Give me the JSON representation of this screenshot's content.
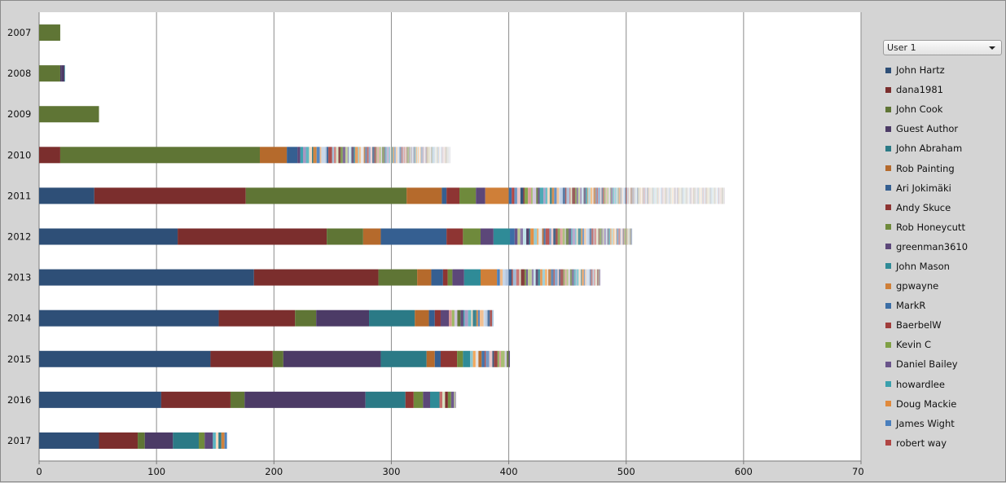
{
  "chart_data": {
    "type": "bar",
    "orientation": "horizontal",
    "stacked": true,
    "categories": [
      "2007",
      "2008",
      "2009",
      "2010",
      "2011",
      "2012",
      "2013",
      "2014",
      "2015",
      "2016",
      "2017"
    ],
    "xlim": [
      0,
      700
    ],
    "xticks": [
      0,
      100,
      200,
      300,
      400,
      500,
      600,
      700
    ],
    "grid": true,
    "legend_position": "right",
    "series": [
      {
        "name": "John Hartz",
        "color": "#2e4f77",
        "values": [
          0,
          0,
          0,
          0,
          47,
          118,
          183,
          153,
          146,
          104,
          51
        ]
      },
      {
        "name": "dana1981",
        "color": "#7b2e2d",
        "values": [
          0,
          0,
          0,
          18,
          129,
          127,
          106,
          65,
          53,
          59,
          33
        ]
      },
      {
        "name": "John Cook",
        "color": "#5f7535",
        "values": [
          18,
          18,
          51,
          170,
          137,
          31,
          33,
          18,
          9,
          12,
          6
        ]
      },
      {
        "name": "Guest Author",
        "color": "#4c3b66",
        "values": [
          0,
          1,
          0,
          0,
          0,
          0,
          0,
          45,
          83,
          103,
          24
        ]
      },
      {
        "name": "John Abraham",
        "color": "#2b7a86",
        "values": [
          0,
          0,
          0,
          0,
          0,
          0,
          0,
          39,
          39,
          34,
          22
        ]
      },
      {
        "name": "Rob Painting",
        "color": "#b56a2c",
        "values": [
          0,
          0,
          0,
          23,
          30,
          15,
          12,
          12,
          7,
          0,
          0
        ]
      },
      {
        "name": "Ari Jokimäki",
        "color": "#355f91",
        "values": [
          0,
          0,
          0,
          9,
          4,
          56,
          10,
          5,
          5,
          0,
          0
        ]
      },
      {
        "name": "Andy Skuce",
        "color": "#8e3533",
        "values": [
          0,
          0,
          0,
          0,
          11,
          14,
          4,
          5,
          14,
          7,
          0
        ]
      },
      {
        "name": "Rob Honeycutt",
        "color": "#6f8a3c",
        "values": [
          0,
          0,
          0,
          0,
          14,
          15,
          4,
          0,
          5,
          8,
          5
        ]
      },
      {
        "name": "greenman3610",
        "color": "#5c4779",
        "values": [
          0,
          0,
          0,
          0,
          8,
          11,
          10,
          7,
          0,
          6,
          7
        ]
      },
      {
        "name": "John Mason",
        "color": "#2f8b97",
        "values": [
          0,
          0,
          0,
          0,
          0,
          14,
          14,
          0,
          6,
          8,
          0
        ]
      },
      {
        "name": "gpwayne",
        "color": "#cf7f38",
        "values": [
          0,
          0,
          0,
          0,
          20,
          0,
          14,
          0,
          0,
          0,
          0
        ]
      },
      {
        "name": "MarkR",
        "color": "#3b6ea6",
        "values": [
          0,
          0,
          0,
          0,
          0,
          4,
          0,
          0,
          0,
          0,
          0
        ]
      },
      {
        "name": "BaerbelW",
        "color": "#a03d3b",
        "values": [
          0,
          0,
          0,
          0,
          0,
          0,
          0,
          0,
          0,
          0,
          0
        ]
      },
      {
        "name": "Kevin C",
        "color": "#7fa045",
        "values": [
          0,
          0,
          0,
          0,
          0,
          0,
          0,
          0,
          0,
          0,
          0
        ]
      },
      {
        "name": "Daniel Bailey",
        "color": "#6a548a",
        "values": [
          0,
          0,
          0,
          0,
          0,
          0,
          0,
          0,
          0,
          0,
          0
        ]
      },
      {
        "name": "howardlee",
        "color": "#3aa0ad",
        "values": [
          0,
          0,
          0,
          0,
          0,
          0,
          0,
          0,
          0,
          0,
          0
        ]
      },
      {
        "name": "Doug Mackie",
        "color": "#e08a3c",
        "values": [
          0,
          0,
          0,
          0,
          0,
          0,
          0,
          0,
          0,
          0,
          0
        ]
      },
      {
        "name": "James Wight",
        "color": "#4a7fbd",
        "values": [
          0,
          0,
          0,
          0,
          0,
          0,
          0,
          0,
          0,
          0,
          0
        ]
      },
      {
        "name": "robert way",
        "color": "#b04644",
        "values": [
          0,
          0,
          0,
          0,
          0,
          0,
          0,
          0,
          0,
          0,
          0
        ]
      }
    ],
    "other_authors_total": [
      0,
      3,
      0,
      130,
      184,
      100,
      88,
      38,
      34,
      14,
      12
    ]
  },
  "user_select": {
    "selected": "User 1"
  }
}
